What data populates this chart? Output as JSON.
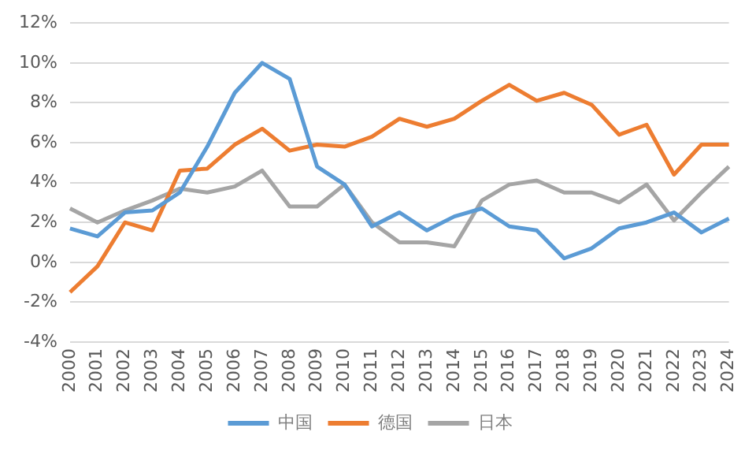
{
  "chart_data": {
    "type": "line",
    "categories": [
      "2000",
      "2001",
      "2002",
      "2003",
      "2004",
      "2005",
      "2006",
      "2007",
      "2008",
      "2009",
      "2010",
      "2011",
      "2012",
      "2013",
      "2014",
      "2015",
      "2016",
      "2017",
      "2018",
      "2019",
      "2020",
      "2021",
      "2022",
      "2023",
      "2024"
    ],
    "series": [
      {
        "name": "中国",
        "color": "#5b9bd5",
        "values": [
          1.7,
          1.3,
          2.5,
          2.6,
          3.5,
          5.8,
          8.5,
          10.0,
          9.2,
          4.8,
          3.9,
          1.8,
          2.5,
          1.6,
          2.3,
          2.7,
          1.8,
          1.6,
          0.2,
          0.7,
          1.7,
          2.0,
          2.5,
          1.5,
          2.2
        ]
      },
      {
        "name": "德国",
        "color": "#ed7d31",
        "values": [
          -1.5,
          -0.2,
          2.0,
          1.6,
          4.6,
          4.7,
          5.9,
          6.7,
          5.6,
          5.9,
          5.8,
          6.3,
          7.2,
          6.8,
          7.2,
          8.1,
          8.9,
          8.1,
          8.5,
          7.9,
          6.4,
          6.9,
          4.4,
          5.9,
          5.9
        ]
      },
      {
        "name": "日本",
        "color": "#a5a5a5",
        "values": [
          2.7,
          2.0,
          2.6,
          3.1,
          3.7,
          3.5,
          3.8,
          4.6,
          2.8,
          2.8,
          3.9,
          2.0,
          1.0,
          1.0,
          0.8,
          3.1,
          3.9,
          4.1,
          3.5,
          3.5,
          3.0,
          3.9,
          2.1,
          3.5,
          4.8
        ]
      }
    ],
    "ylim": [
      -4,
      12
    ],
    "yticks": [
      {
        "value": -4,
        "label": "-4%"
      },
      {
        "value": -2,
        "label": "-2%"
      },
      {
        "value": 0,
        "label": "0%"
      },
      {
        "value": 2,
        "label": "2%"
      },
      {
        "value": 4,
        "label": "4%"
      },
      {
        "value": 6,
        "label": "6%"
      },
      {
        "value": 8,
        "label": "8%"
      },
      {
        "value": 10,
        "label": "10%"
      },
      {
        "value": 12,
        "label": "12%"
      }
    ],
    "grid": "y",
    "legend": "bottom",
    "marker": "none",
    "line_style": "solid"
  }
}
